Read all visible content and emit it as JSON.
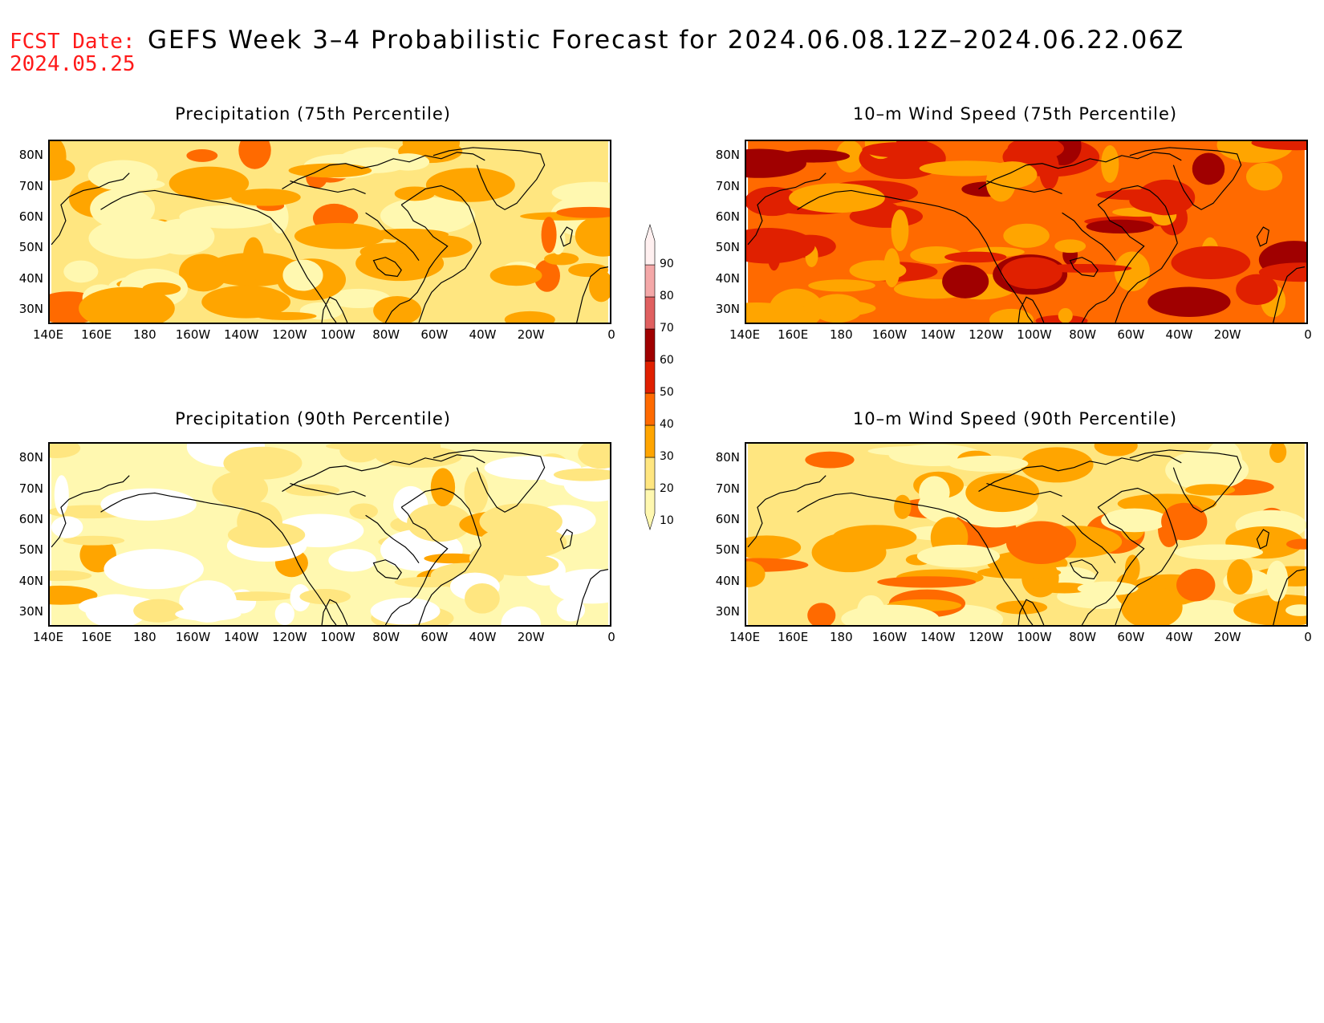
{
  "header": {
    "fcst_label": "FCST Date:",
    "fcst_date": "2024.05.25",
    "title": "GEFS Week 3–4 Probabilistic Forecast for 2024.06.08.12Z–2024.06.22.06Z"
  },
  "panels": [
    {
      "title": "Precipitation (75th Percentile)",
      "base_level": 20
    },
    {
      "title": "10–m Wind Speed (75th Percentile)",
      "base_level": 40
    },
    {
      "title": "Precipitation (90th Percentile)",
      "base_level": 10
    },
    {
      "title": "10–m Wind Speed (90th Percentile)",
      "base_level": 20
    }
  ],
  "axes": {
    "lat_labels": [
      "80N",
      "70N",
      "60N",
      "50N",
      "40N",
      "30N"
    ],
    "lon_labels": [
      "140E",
      "160E",
      "180",
      "160W",
      "140W",
      "120W",
      "100W",
      "80W",
      "60W",
      "40W",
      "20W",
      "0"
    ]
  },
  "colorbar": {
    "levels": [
      "10",
      "20",
      "30",
      "40",
      "50",
      "60",
      "70",
      "80",
      "90"
    ],
    "colors": [
      "#fff8b0",
      "#ffe680",
      "#ffa500",
      "#ff6a00",
      "#e02000",
      "#a00000",
      "#e06060",
      "#f4a8a8",
      "#fff0f0"
    ]
  },
  "colors": {
    "fcst": "#ff1a1a",
    "coast": "#000000",
    "ocean_white": "#ffffff"
  }
}
